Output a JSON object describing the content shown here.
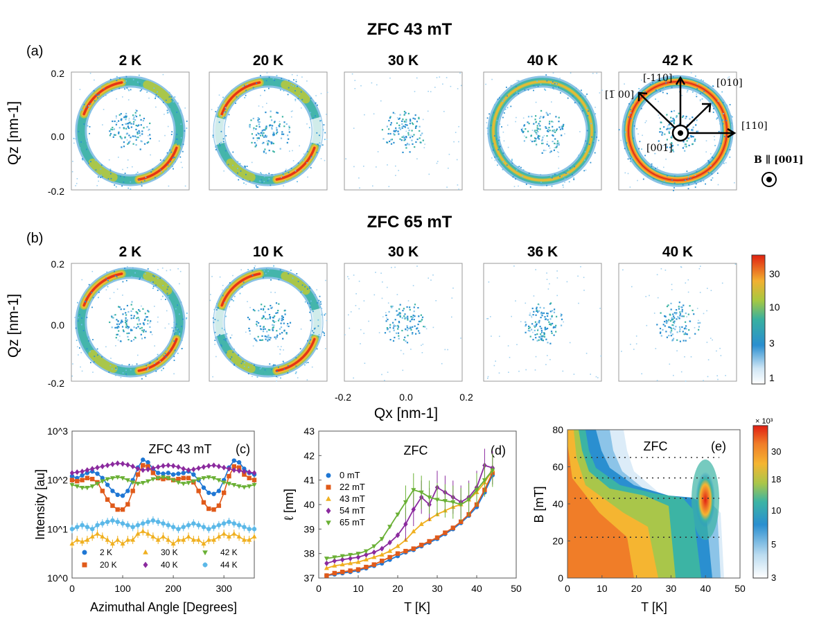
{
  "figure": {
    "row_a_title": "ZFC 43 mT",
    "row_a_label": "(a)",
    "row_b_title": "ZFC 65 mT",
    "row_b_label": "(b)",
    "qz_label": "Qz [nm-1]",
    "qx_label": "Qx [nm-1]",
    "q_ticks": [
      "0.2",
      "0.0",
      "-0.2"
    ],
    "qx_ticks": [
      "-0.2",
      "0.0",
      "0.2"
    ],
    "row_a_panels": [
      {
        "temp": "2 K",
        "ring": 1.0,
        "hot": 0.9,
        "pattern": "four-spot"
      },
      {
        "temp": "20 K",
        "ring": 0.9,
        "hot": 0.7,
        "pattern": "four-spot-broken"
      },
      {
        "temp": "30 K",
        "ring": 0.0,
        "hot": 0.0,
        "pattern": "none"
      },
      {
        "temp": "40 K",
        "ring": 0.9,
        "hot": 0.55,
        "pattern": "ring"
      },
      {
        "temp": "42 K",
        "ring": 1.0,
        "hot": 1.0,
        "pattern": "ring-hot"
      }
    ],
    "row_b_panels": [
      {
        "temp": "2 K",
        "ring": 1.0,
        "hot": 0.9,
        "pattern": "four-spot"
      },
      {
        "temp": "10 K",
        "ring": 0.9,
        "hot": 0.8,
        "pattern": "four-spot-broken"
      },
      {
        "temp": "30 K",
        "ring": 0.0,
        "hot": 0.0,
        "pattern": "none"
      },
      {
        "temp": "36 K",
        "ring": 0.0,
        "hot": 0.0,
        "pattern": "none"
      },
      {
        "temp": "40 K",
        "ring": 0.0,
        "hot": 0.0,
        "pattern": "none"
      }
    ],
    "crystal_directions": [
      "[-110]",
      "[010]",
      "[̅1̅ 00]",
      "[110]",
      "[001]"
    ],
    "crystal_dir_1bar00": "[1̅ 00]",
    "field_label": "B ∥ [001]",
    "colorbar_ticks": [
      "30",
      "10",
      "3",
      "1"
    ]
  },
  "chart_data": [
    {
      "type": "line",
      "panel": "(c)",
      "title": "ZFC 43 mT",
      "xlabel": "Azimuthal Angle [Degrees]",
      "ylabel": "Intensity [au]",
      "xlim": [
        0,
        360
      ],
      "ylim_log10": [
        0,
        3
      ],
      "x_ticks": [
        "0",
        "100",
        "200",
        "300"
      ],
      "y_ticks": [
        "10^0",
        "10^1",
        "10^2",
        "10^3"
      ],
      "x": [
        0,
        10,
        20,
        30,
        40,
        50,
        60,
        70,
        80,
        90,
        100,
        110,
        120,
        130,
        140,
        150,
        160,
        170,
        180,
        190,
        200,
        210,
        220,
        230,
        240,
        250,
        260,
        270,
        280,
        290,
        300,
        310,
        320,
        330,
        340,
        350,
        360
      ],
      "series": [
        {
          "name": "2 K",
          "color": "#1f77d4",
          "marker": "circle",
          "values": [
            120,
            110,
            125,
            140,
            150,
            135,
            110,
            80,
            60,
            50,
            48,
            60,
            100,
            180,
            260,
            230,
            170,
            140,
            135,
            140,
            130,
            135,
            140,
            150,
            130,
            100,
            70,
            55,
            52,
            60,
            100,
            180,
            250,
            230,
            170,
            140,
            130
          ]
        },
        {
          "name": "20 K",
          "color": "#e05a1a",
          "marker": "square",
          "values": [
            100,
            95,
            100,
            110,
            105,
            90,
            60,
            40,
            30,
            25,
            25,
            32,
            60,
            130,
            200,
            190,
            140,
            110,
            105,
            110,
            100,
            105,
            110,
            110,
            90,
            60,
            35,
            26,
            25,
            30,
            55,
            120,
            190,
            180,
            130,
            110,
            100
          ]
        },
        {
          "name": "30 K",
          "color": "#f0b020",
          "marker": "triangle-up",
          "values": [
            5,
            6,
            5.5,
            6,
            7,
            8,
            7,
            6,
            5,
            6,
            5,
            6,
            6,
            8,
            9,
            8,
            7,
            6,
            7,
            6,
            5,
            6,
            6,
            7,
            6,
            6,
            5,
            6,
            6,
            7,
            8,
            7,
            8,
            7,
            6,
            6,
            7
          ]
        },
        {
          "name": "40 K",
          "color": "#8b2a9e",
          "marker": "diamond",
          "values": [
            140,
            145,
            150,
            160,
            170,
            180,
            190,
            200,
            210,
            220,
            215,
            205,
            190,
            170,
            160,
            165,
            175,
            185,
            195,
            200,
            195,
            185,
            170,
            160,
            165,
            175,
            185,
            195,
            200,
            190,
            180,
            170,
            160,
            155,
            150,
            145,
            140
          ]
        },
        {
          "name": "42 K",
          "color": "#6ab035",
          "marker": "triangle-down",
          "values": [
            80,
            75,
            70,
            70,
            75,
            85,
            95,
            105,
            110,
            115,
            110,
            100,
            90,
            85,
            88,
            95,
            105,
            110,
            115,
            110,
            100,
            90,
            85,
            88,
            95,
            105,
            110,
            115,
            110,
            100,
            90,
            85,
            80,
            75,
            72,
            75,
            80
          ]
        },
        {
          "name": "44 K",
          "color": "#5bb8e8",
          "marker": "star",
          "values": [
            10,
            11,
            12,
            11,
            10,
            12,
            13,
            14,
            15,
            14,
            13,
            12,
            11,
            12,
            13,
            14,
            15,
            14,
            13,
            12,
            11,
            10,
            11,
            12,
            13,
            12,
            11,
            10,
            11,
            12,
            13,
            14,
            13,
            12,
            11,
            10,
            10
          ]
        }
      ]
    },
    {
      "type": "line",
      "panel": "(d)",
      "title": "ZFC",
      "xlabel": "T [K]",
      "ylabel": "ℓ [nm]",
      "xlim": [
        0,
        50
      ],
      "ylim": [
        37,
        43
      ],
      "x_ticks": [
        "0",
        "10",
        "20",
        "30",
        "40",
        "50"
      ],
      "y_ticks": [
        "37",
        "38",
        "39",
        "40",
        "41",
        "42",
        "43"
      ],
      "series": [
        {
          "name": "0 mT",
          "color": "#1f77d4",
          "marker": "circle",
          "x": [
            2,
            4,
            6,
            8,
            10,
            12,
            14,
            16,
            18,
            20,
            22,
            24,
            26,
            28,
            30,
            32,
            34,
            36,
            38,
            40,
            42,
            44
          ],
          "values": [
            37.1,
            37.15,
            37.2,
            37.25,
            37.3,
            37.4,
            37.5,
            37.6,
            37.75,
            37.9,
            38.05,
            38.15,
            38.3,
            38.45,
            38.6,
            38.8,
            39.0,
            39.25,
            39.55,
            39.9,
            40.5,
            41.2
          ]
        },
        {
          "name": "22 mT",
          "color": "#e05a1a",
          "marker": "square",
          "x": [
            2,
            4,
            6,
            8,
            10,
            12,
            14,
            16,
            18,
            20,
            22,
            24,
            26,
            28,
            30,
            32,
            34,
            36,
            38,
            40,
            42,
            44
          ],
          "values": [
            37.1,
            37.2,
            37.25,
            37.3,
            37.35,
            37.45,
            37.55,
            37.7,
            37.85,
            38.0,
            38.1,
            38.2,
            38.35,
            38.5,
            38.65,
            38.85,
            39.05,
            39.3,
            39.6,
            40.0,
            40.6,
            41.3
          ]
        },
        {
          "name": "43 mT",
          "color": "#f0b020",
          "marker": "triangle-up",
          "x": [
            2,
            4,
            6,
            8,
            10,
            12,
            14,
            16,
            18,
            20,
            22,
            24,
            26,
            28,
            30,
            32,
            34,
            36,
            38,
            40,
            42,
            44
          ],
          "values": [
            37.4,
            37.5,
            37.55,
            37.6,
            37.65,
            37.75,
            37.85,
            37.95,
            38.1,
            38.3,
            38.55,
            38.9,
            39.2,
            39.4,
            39.6,
            39.75,
            39.9,
            40.0,
            40.2,
            40.5,
            40.9,
            41.4
          ]
        },
        {
          "name": "54 mT",
          "color": "#8b2a9e",
          "marker": "diamond",
          "x": [
            2,
            4,
            6,
            8,
            10,
            12,
            14,
            16,
            18,
            20,
            22,
            24,
            26,
            28,
            30,
            32,
            34,
            36,
            38,
            40,
            42,
            44
          ],
          "values": [
            37.6,
            37.7,
            37.75,
            37.8,
            37.85,
            37.95,
            38.05,
            38.2,
            38.45,
            38.75,
            39.2,
            39.8,
            40.3,
            40.0,
            40.7,
            40.5,
            40.3,
            40.1,
            40.3,
            40.7,
            41.6,
            41.5
          ]
        },
        {
          "name": "65 mT",
          "color": "#6ab035",
          "marker": "triangle-down",
          "x": [
            2,
            4,
            6,
            8,
            10,
            12,
            14,
            16,
            18,
            20,
            22,
            24,
            26,
            28,
            30,
            32,
            34,
            36,
            38,
            40,
            42,
            44
          ],
          "values": [
            37.8,
            37.85,
            37.9,
            37.95,
            38.0,
            38.1,
            38.3,
            38.6,
            39.1,
            39.6,
            40.1,
            40.6,
            40.5,
            40.3,
            40.2,
            40.15,
            40.1,
            40.0,
            40.2,
            40.6,
            41.0,
            41.4
          ]
        }
      ]
    },
    {
      "type": "heatmap",
      "panel": "(e)",
      "title": "ZFC",
      "xlabel": "T [K]",
      "ylabel": "B [mT]",
      "xlim": [
        0,
        50
      ],
      "ylim": [
        0,
        80
      ],
      "x_ticks": [
        "0",
        "10",
        "20",
        "30",
        "40",
        "50"
      ],
      "y_ticks": [
        "0",
        "20",
        "40",
        "60",
        "80"
      ],
      "dotted_field_lines": [
        22,
        43,
        54,
        65
      ],
      "hot_spot": {
        "T": 40,
        "B": 43
      },
      "colorbar_ticks": [
        "30",
        "18",
        "10",
        "5",
        "3"
      ],
      "colorbar_multiplier": "× 10³"
    }
  ]
}
